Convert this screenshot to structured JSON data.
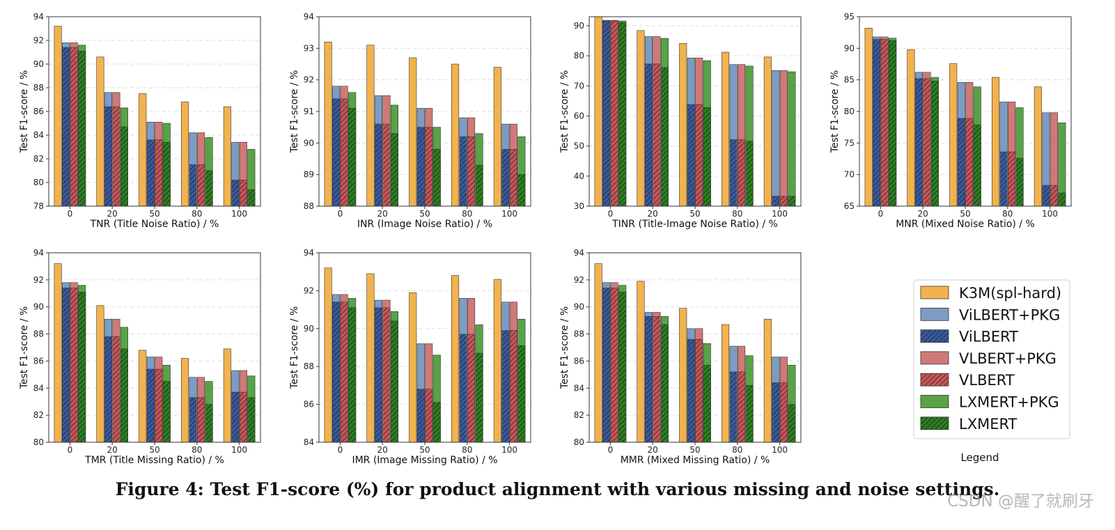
{
  "caption": "Figure 4: Test F1-score (%) for product alignment with various missing and noise settings.",
  "watermark": "CSDN @醒了就刷牙",
  "legend": {
    "title": "Legend",
    "entries": [
      {
        "label": "K3M(spl-hard)",
        "color": "#F2B24E",
        "hatch": false
      },
      {
        "label": "ViLBERT+PKG",
        "color": "#7C9CC4",
        "hatch": false
      },
      {
        "label": "ViLBERT",
        "color": "#3B5998",
        "hatch": true
      },
      {
        "label": "VLBERT+PKG",
        "color": "#CF7A78",
        "hatch": false
      },
      {
        "label": "VLBERT",
        "color": "#C2575A",
        "hatch": true
      },
      {
        "label": "LXMERT+PKG",
        "color": "#58A345",
        "hatch": false
      },
      {
        "label": "LXMERT",
        "color": "#2E7D23",
        "hatch": true
      }
    ]
  },
  "colors": {
    "k3m": "#F2B24E",
    "vil": "#7C9CC4",
    "vil_hatch": "#3B5998",
    "vl": "#CF7A78",
    "vl_hatch": "#C2575A",
    "lx": "#58A345",
    "lx_hatch": "#2E7D23",
    "edge": "#333333",
    "grid": "#dddddd"
  },
  "chart_data": [
    {
      "type": "bar",
      "xlabel": "TNR (Title Noise Ratio) / %",
      "ylabel": "Test F1-score / %",
      "categories": [
        "0",
        "20",
        "50",
        "80",
        "100"
      ],
      "ylim": [
        78,
        94
      ],
      "yticks": [
        78,
        80,
        82,
        84,
        86,
        88,
        90,
        92,
        94
      ],
      "k3m": [
        93.2,
        90.6,
        87.5,
        86.8,
        86.4
      ],
      "vilbert_pkg": [
        91.8,
        87.6,
        85.1,
        84.2,
        83.4
      ],
      "vilbert": [
        91.4,
        86.4,
        83.6,
        81.5,
        80.2
      ],
      "vlbert_pkg": [
        91.8,
        87.6,
        85.1,
        84.2,
        83.4
      ],
      "vlbert": [
        91.4,
        86.4,
        83.6,
        81.5,
        80.2
      ],
      "lxmert_pkg": [
        91.6,
        86.3,
        85.0,
        83.8,
        82.8
      ],
      "lxmert": [
        91.1,
        84.7,
        83.4,
        81.0,
        79.4
      ]
    },
    {
      "type": "bar",
      "xlabel": "INR (Image Noise Ratio) / %",
      "ylabel": "Test F1-score / %",
      "categories": [
        "0",
        "20",
        "50",
        "80",
        "100"
      ],
      "ylim": [
        88,
        94
      ],
      "yticks": [
        88,
        89,
        90,
        91,
        92,
        93,
        94
      ],
      "k3m": [
        93.2,
        93.1,
        92.7,
        92.5,
        92.4
      ],
      "vilbert_pkg": [
        91.8,
        91.5,
        91.1,
        90.8,
        90.6
      ],
      "vilbert": [
        91.4,
        90.6,
        90.5,
        90.2,
        89.8
      ],
      "vlbert_pkg": [
        91.8,
        91.5,
        91.1,
        90.8,
        90.6
      ],
      "vlbert": [
        91.4,
        90.6,
        90.5,
        90.2,
        89.8
      ],
      "lxmert_pkg": [
        91.6,
        91.2,
        90.5,
        90.3,
        90.2
      ],
      "lxmert": [
        91.1,
        90.3,
        89.8,
        89.3,
        89.0
      ]
    },
    {
      "type": "bar",
      "xlabel": "TINR (Title-Image Noise Ratio) / %",
      "ylabel": "Test F1-score / %",
      "categories": [
        "0",
        "20",
        "50",
        "80",
        "100"
      ],
      "ylim": [
        30,
        93
      ],
      "yticks": [
        30,
        40,
        50,
        60,
        70,
        80,
        90
      ],
      "k3m": [
        93.2,
        88.4,
        84.1,
        81.2,
        79.6
      ],
      "vilbert_pkg": [
        91.8,
        86.4,
        79.3,
        77.1,
        75.1
      ],
      "vilbert": [
        91.6,
        77.3,
        63.8,
        52.1,
        33.3
      ],
      "vlbert_pkg": [
        91.8,
        86.4,
        79.3,
        77.1,
        75.1
      ],
      "vlbert": [
        91.6,
        77.3,
        63.8,
        52.1,
        33.3
      ],
      "lxmert_pkg": [
        91.6,
        85.8,
        78.4,
        76.6,
        74.7
      ],
      "lxmert": [
        91.1,
        76.1,
        62.8,
        51.6,
        33.3
      ]
    },
    {
      "type": "bar",
      "xlabel": "MNR (Mixed Noise Ratio) / %",
      "ylabel": "Test F1-score / %",
      "categories": [
        "0",
        "20",
        "50",
        "80",
        "100"
      ],
      "ylim": [
        65,
        95
      ],
      "yticks": [
        65,
        70,
        75,
        80,
        85,
        90,
        95
      ],
      "k3m": [
        93.2,
        89.8,
        87.6,
        85.4,
        83.9
      ],
      "vilbert_pkg": [
        91.8,
        86.2,
        84.6,
        81.5,
        79.8
      ],
      "vilbert": [
        91.4,
        85.2,
        78.9,
        73.6,
        68.3
      ],
      "vlbert_pkg": [
        91.8,
        86.2,
        84.6,
        81.5,
        79.8
      ],
      "vlbert": [
        91.4,
        85.2,
        78.9,
        73.6,
        68.3
      ],
      "lxmert_pkg": [
        91.6,
        85.4,
        83.9,
        80.6,
        78.2
      ],
      "lxmert": [
        91.2,
        84.8,
        77.9,
        72.6,
        67.1
      ]
    },
    {
      "type": "bar",
      "xlabel": "TMR (Title Missing Ratio) / %",
      "ylabel": "Test F1-score / %",
      "categories": [
        "0",
        "20",
        "50",
        "80",
        "100"
      ],
      "ylim": [
        80,
        94
      ],
      "yticks": [
        80,
        82,
        84,
        86,
        88,
        90,
        92,
        94
      ],
      "k3m": [
        93.2,
        90.1,
        86.8,
        86.2,
        86.9
      ],
      "vilbert_pkg": [
        91.8,
        89.1,
        86.3,
        84.8,
        85.3
      ],
      "vilbert": [
        91.4,
        87.8,
        85.4,
        83.3,
        83.7
      ],
      "vlbert_pkg": [
        91.8,
        89.1,
        86.3,
        84.8,
        85.3
      ],
      "vlbert": [
        91.4,
        87.8,
        85.4,
        83.3,
        83.7
      ],
      "lxmert_pkg": [
        91.6,
        88.5,
        85.7,
        84.5,
        84.9
      ],
      "lxmert": [
        91.1,
        86.9,
        84.5,
        82.8,
        83.3
      ]
    },
    {
      "type": "bar",
      "xlabel": "IMR (Image Missing Ratio) / %",
      "ylabel": "Test F1-score / %",
      "categories": [
        "0",
        "20",
        "50",
        "80",
        "100"
      ],
      "ylim": [
        84,
        94
      ],
      "yticks": [
        84,
        86,
        88,
        90,
        92,
        94
      ],
      "k3m": [
        93.2,
        92.9,
        91.9,
        92.8,
        92.6
      ],
      "vilbert_pkg": [
        91.8,
        91.5,
        89.2,
        91.6,
        91.4
      ],
      "vilbert": [
        91.4,
        91.1,
        86.8,
        89.7,
        89.9
      ],
      "vlbert_pkg": [
        91.8,
        91.5,
        89.2,
        91.6,
        91.4
      ],
      "vlbert": [
        91.4,
        91.1,
        86.8,
        89.7,
        89.9
      ],
      "lxmert_pkg": [
        91.6,
        90.9,
        88.6,
        90.2,
        90.5
      ],
      "lxmert": [
        91.1,
        90.4,
        86.1,
        88.7,
        89.1
      ]
    },
    {
      "type": "bar",
      "xlabel": "MMR (Mixed Missing Ratio) / %",
      "ylabel": "Test F1-score / %",
      "categories": [
        "0",
        "20",
        "50",
        "80",
        "100"
      ],
      "ylim": [
        80,
        94
      ],
      "yticks": [
        80,
        82,
        84,
        86,
        88,
        90,
        92,
        94
      ],
      "k3m": [
        93.2,
        91.9,
        89.9,
        88.7,
        89.1
      ],
      "vilbert_pkg": [
        91.8,
        89.6,
        88.4,
        87.1,
        86.3
      ],
      "vilbert": [
        91.4,
        89.3,
        87.6,
        85.2,
        84.4
      ],
      "vlbert_pkg": [
        91.8,
        89.6,
        88.4,
        87.1,
        86.3
      ],
      "vlbert": [
        91.4,
        89.3,
        87.6,
        85.2,
        84.4
      ],
      "lxmert_pkg": [
        91.6,
        89.3,
        87.3,
        86.4,
        85.7
      ],
      "lxmert": [
        91.1,
        88.7,
        85.7,
        84.2,
        82.8
      ]
    }
  ]
}
